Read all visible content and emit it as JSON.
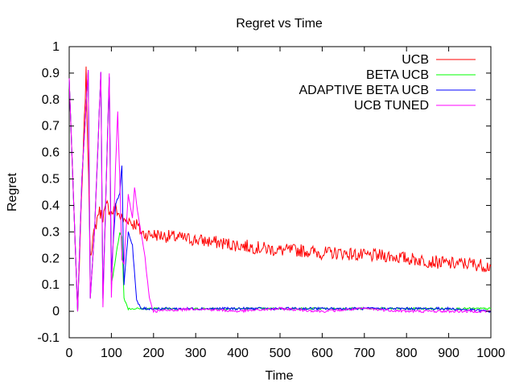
{
  "chart_data": {
    "type": "line",
    "title": "Regret vs Time",
    "xlabel": "Time",
    "ylabel": "Regret",
    "xlim": [
      0,
      1000
    ],
    "ylim": [
      -0.1,
      1
    ],
    "xticks": [
      "0",
      "100",
      "200",
      "300",
      "400",
      "500",
      "600",
      "700",
      "800",
      "900",
      "1000"
    ],
    "yticks": [
      "-0.1",
      "0",
      "0.1",
      "0.2",
      "0.3",
      "0.4",
      "0.5",
      "0.6",
      "0.7",
      "0.8",
      "0.9",
      "1"
    ],
    "grid": false,
    "legend_position": "top-right",
    "series": [
      {
        "name": "UCB",
        "color": "#ff0000",
        "x": [
          0,
          20,
          40,
          50,
          60,
          70,
          80,
          90,
          100,
          110,
          120,
          130,
          140,
          150,
          160,
          170,
          180,
          200,
          250,
          300,
          350,
          400,
          450,
          500,
          550,
          600,
          650,
          700,
          750,
          800,
          850,
          900,
          950,
          1000
        ],
        "y": [
          0.88,
          0.0,
          0.9,
          0.22,
          0.3,
          0.38,
          0.36,
          0.4,
          0.37,
          0.39,
          0.36,
          0.34,
          0.35,
          0.33,
          0.33,
          0.3,
          0.29,
          0.29,
          0.28,
          0.27,
          0.26,
          0.25,
          0.24,
          0.23,
          0.23,
          0.22,
          0.22,
          0.21,
          0.21,
          0.2,
          0.19,
          0.18,
          0.18,
          0.17
        ]
      },
      {
        "name": "BETA UCB",
        "color": "#00ff00",
        "x": [
          0,
          20,
          30,
          45,
          50,
          60,
          75,
          80,
          95,
          100,
          110,
          120,
          125,
          130,
          140,
          150,
          170,
          200,
          300,
          400,
          500,
          600,
          700,
          800,
          900,
          1000
        ],
        "y": [
          0.88,
          0.0,
          0.5,
          0.91,
          0.05,
          0.3,
          0.9,
          0.05,
          0.88,
          0.1,
          0.2,
          0.3,
          0.28,
          0.05,
          0.01,
          0.01,
          0.01,
          0.01,
          0.01,
          0.01,
          0.01,
          0.01,
          0.01,
          0.01,
          0.01,
          0.01
        ]
      },
      {
        "name": "ADAPTIVE BETA UCB",
        "color": "#0000ff",
        "x": [
          0,
          20,
          30,
          45,
          50,
          60,
          75,
          80,
          95,
          100,
          110,
          120,
          125,
          130,
          140,
          150,
          160,
          170,
          180,
          200,
          300,
          400,
          500,
          600,
          700,
          800,
          900,
          1000
        ],
        "y": [
          0.88,
          0.0,
          0.5,
          0.91,
          0.05,
          0.3,
          0.9,
          0.05,
          0.89,
          0.15,
          0.4,
          0.45,
          0.55,
          0.1,
          0.3,
          0.25,
          0.04,
          0.01,
          0.01,
          0.01,
          0.01,
          0.01,
          0.01,
          0.01,
          0.01,
          0.01,
          0.01,
          0.0
        ]
      },
      {
        "name": "UCB TUNED",
        "color": "#ff00ff",
        "x": [
          0,
          20,
          30,
          45,
          50,
          60,
          75,
          80,
          95,
          100,
          110,
          115,
          120,
          125,
          130,
          140,
          150,
          155,
          160,
          170,
          180,
          190,
          200,
          300,
          400,
          500,
          600,
          700,
          800,
          900,
          1000
        ],
        "y": [
          0.88,
          0.0,
          0.5,
          0.91,
          0.05,
          0.3,
          0.9,
          0.02,
          0.9,
          0.05,
          0.55,
          0.75,
          0.5,
          0.2,
          0.18,
          0.44,
          0.35,
          0.47,
          0.4,
          0.3,
          0.2,
          0.05,
          0.0,
          0.01,
          0.0,
          0.01,
          0.0,
          0.01,
          0.0,
          0.0,
          0.0
        ]
      }
    ]
  }
}
